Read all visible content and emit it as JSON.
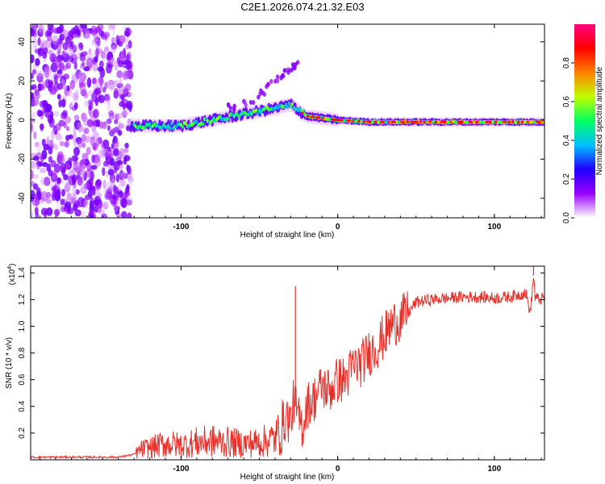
{
  "title": "C2E1.2026.074.21.32.E03",
  "chart_data": [
    {
      "type": "heatmap",
      "xlabel": "Height of straight line (km)",
      "ylabel": "Frequency (Hz)",
      "xlim": [
        -196,
        132
      ],
      "ylim": [
        -50,
        49
      ],
      "xticks": [
        -100,
        0,
        100
      ],
      "xtick_labels": [
        "-100",
        "0",
        "100"
      ],
      "yticks": [
        -40,
        -20,
        0,
        20,
        40
      ],
      "ytick_labels": [
        "-40",
        "-20",
        "0",
        "20",
        "40"
      ],
      "colorbar": {
        "label": "Normalized spectral amplitude",
        "range": [
          0.0,
          1.0
        ],
        "ticks": [
          0.0,
          0.2,
          0.4,
          0.6,
          0.8
        ],
        "tick_labels": [
          "0.0",
          "0.2",
          "0.4",
          "0.6",
          "0.8"
        ],
        "colors": [
          "#ffffff",
          "#9a00ff",
          "#2000ff",
          "#00c0ff",
          "#00ff60",
          "#c0ff00",
          "#ff8000",
          "#ff0000",
          "#ff0080"
        ]
      },
      "features": [
        {
          "name": "broadband noise",
          "x_range": [
            -196,
            -132
          ],
          "freq_range": [
            -50,
            49
          ]
        },
        {
          "name": "main trace",
          "points": [
            [
              -132,
              -3
            ],
            [
              -100,
              -3
            ],
            [
              -80,
              0
            ],
            [
              -60,
              3
            ],
            [
              -40,
              6
            ],
            [
              -30,
              8
            ],
            [
              -20,
              2
            ],
            [
              0,
              0
            ],
            [
              20,
              -1
            ],
            [
              40,
              -1
            ],
            [
              60,
              -1
            ],
            [
              80,
              -1
            ],
            [
              100,
              -1
            ],
            [
              132,
              -1
            ]
          ]
        },
        {
          "name": "upper branch",
          "points": [
            [
              -70,
              6
            ],
            [
              -55,
              10
            ],
            [
              -45,
              16
            ],
            [
              -35,
              24
            ],
            [
              -25,
              30
            ]
          ]
        }
      ]
    },
    {
      "type": "line",
      "xlabel": "Height of straight line (km)",
      "ylabel": "SNR (10 * v/v)",
      "y_scale_label": "(x10",
      "y_scale_exponent": "4",
      "xlim": [
        -196,
        132
      ],
      "ylim": [
        0,
        1.45
      ],
      "xticks": [
        -100,
        0,
        100
      ],
      "xtick_labels": [
        "-100",
        "0",
        "100"
      ],
      "yticks": [
        0.2,
        0.4,
        0.6,
        0.8,
        1.0,
        1.2,
        1.4
      ],
      "ytick_labels": [
        "0.2",
        "0.4",
        "0.6",
        "0.8",
        "1.0",
        "1.2",
        "1.4"
      ],
      "series": [
        {
          "name": "SNR",
          "color": "#e8302a",
          "x": [
            -196,
            -180,
            -160,
            -140,
            -130,
            -125,
            -120,
            -110,
            -100,
            -90,
            -80,
            -70,
            -60,
            -50,
            -40,
            -35,
            -33,
            -30,
            -28,
            -25,
            -22,
            -20,
            -15,
            -10,
            -5,
            0,
            5,
            10,
            15,
            20,
            25,
            30,
            35,
            40,
            45,
            50,
            60,
            70,
            80,
            90,
            100,
            110,
            120,
            123,
            125,
            126,
            128,
            132
          ],
          "values": [
            0.02,
            0.02,
            0.02,
            0.02,
            0.04,
            0.08,
            0.09,
            0.12,
            0.11,
            0.13,
            0.14,
            0.13,
            0.12,
            0.13,
            0.16,
            0.25,
            0.33,
            0.28,
            0.45,
            0.3,
            0.25,
            0.4,
            0.46,
            0.55,
            0.52,
            0.6,
            0.6,
            0.7,
            0.72,
            0.8,
            0.85,
            0.93,
            1.02,
            1.05,
            1.1,
            1.18,
            1.2,
            1.21,
            1.22,
            1.22,
            1.21,
            1.22,
            1.25,
            1.1,
            1.38,
            1.22,
            1.2,
            1.21
          ]
        }
      ],
      "spikes": [
        {
          "x": -27,
          "y": 1.3
        },
        {
          "x": 125,
          "y": 1.45
        }
      ]
    }
  ]
}
